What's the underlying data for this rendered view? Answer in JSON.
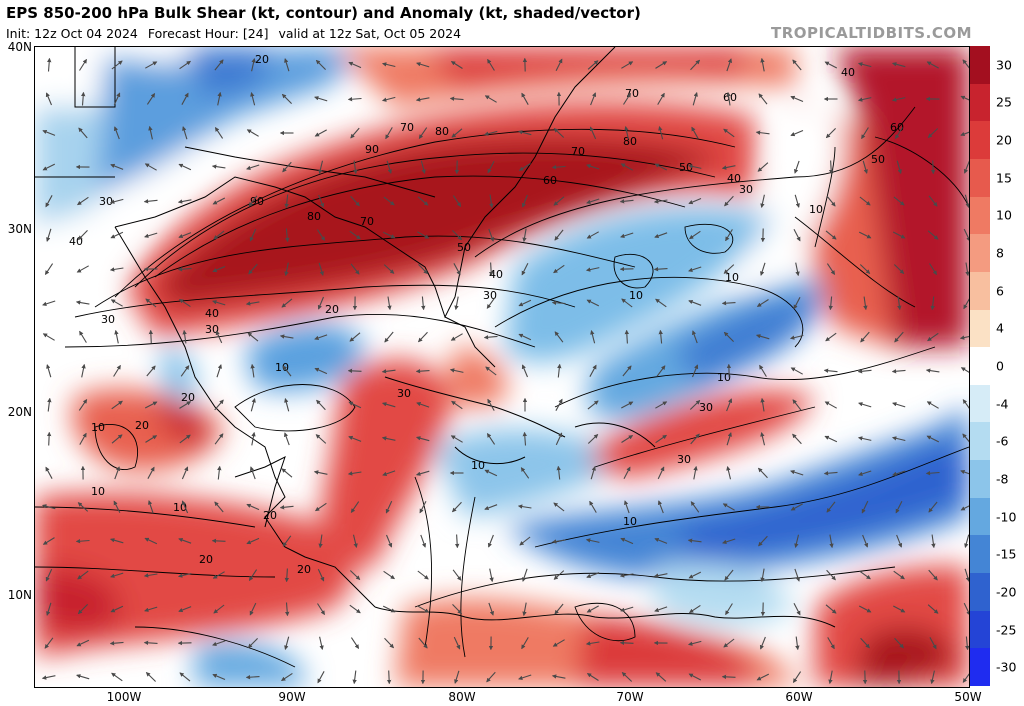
{
  "header": {
    "title": "EPS 850-200 hPa Bulk Shear (kt, contour) and Anomaly (kt, shaded/vector)",
    "init": "Init: 12z Oct 04 2024",
    "forecast_hour": "Forecast Hour: [24]",
    "valid": "valid at 12z Sat, Oct 05 2024",
    "brand": "TROPICALTIDBITS.COM"
  },
  "axes": {
    "lat_labels": [
      "40N",
      "30N",
      "20N",
      "10N"
    ],
    "lon_labels": [
      "100W",
      "90W",
      "80W",
      "70W",
      "60W",
      "50W"
    ]
  },
  "colorbar": {
    "labels": [
      "30",
      "25",
      "20",
      "15",
      "10",
      "8",
      "6",
      "4",
      "0",
      "-4",
      "-6",
      "-8",
      "-10",
      "-15",
      "-20",
      "-25",
      "-30"
    ],
    "colors": [
      "#a30f1f",
      "#c8232e",
      "#dc3b3a",
      "#e75a4d",
      "#ef7a63",
      "#f49b80",
      "#f8bf9f",
      "#fbe1c5",
      "#ffffff",
      "#d6ecf7",
      "#b4dcf1",
      "#8cc5ea",
      "#64a8e0",
      "#4485d5",
      "#2f62cf",
      "#2444d6",
      "#1f2cf0"
    ]
  },
  "contour_labels": [
    "90",
    "90",
    "80",
    "80",
    "80",
    "70",
    "70",
    "70",
    "70",
    "60",
    "60",
    "60",
    "50",
    "50",
    "50",
    "40",
    "40",
    "40",
    "40",
    "40",
    "30",
    "30",
    "30",
    "30",
    "30",
    "30",
    "30",
    "30",
    "20",
    "20",
    "20",
    "20",
    "20",
    "20",
    "20",
    "10",
    "10",
    "10",
    "10",
    "10",
    "10",
    "10",
    "10",
    "10",
    "10"
  ],
  "colors": {
    "title": "#000000",
    "brand": "#9a9a9a",
    "land_line": "#000000",
    "vector": "#4a4a4a"
  }
}
